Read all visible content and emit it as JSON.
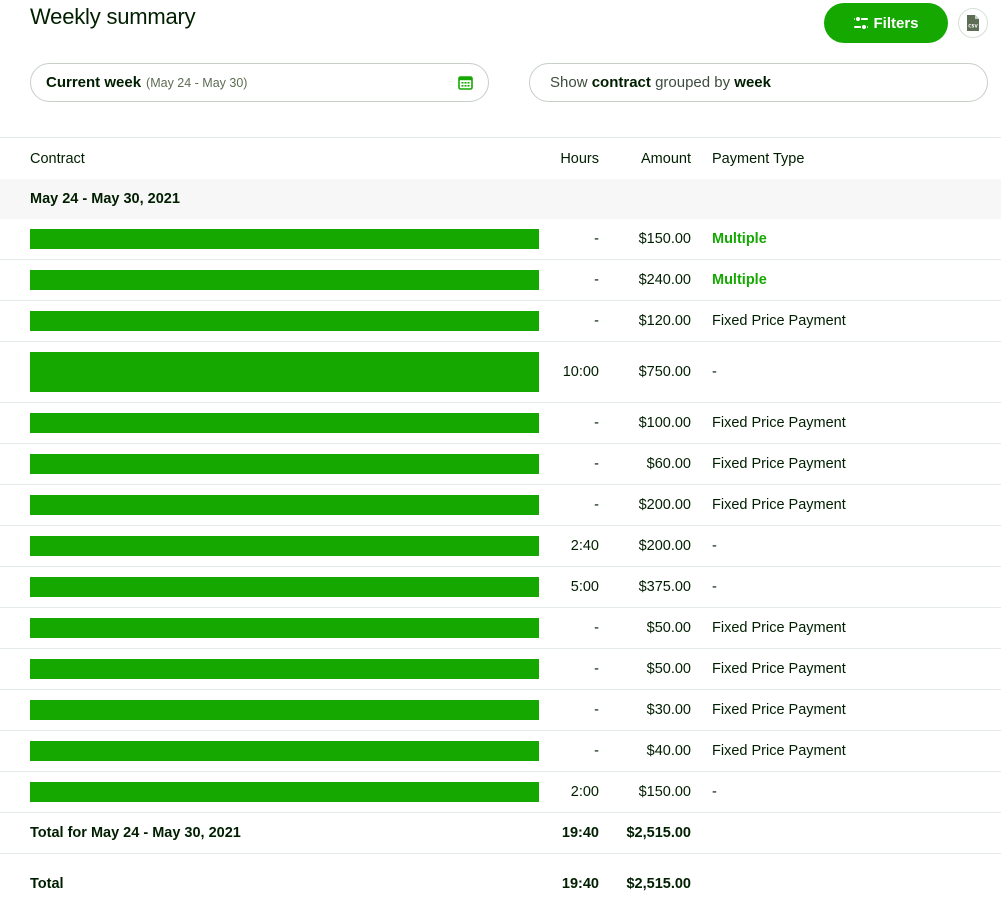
{
  "header": {
    "title": "Weekly summary",
    "filters_label": "Filters",
    "csv_icon_text": "CSV"
  },
  "week_selector": {
    "label": "Current week",
    "range": "(May 24 - May 30)"
  },
  "group_selector": {
    "prefix": "Show",
    "field": "contract",
    "middle": "grouped by",
    "group": "week"
  },
  "colors": {
    "accent": "#14a800",
    "redaction": "#14a800"
  },
  "table": {
    "columns": [
      "Contract",
      "Hours",
      "Amount",
      "Payment Type"
    ],
    "group_label": "May 24 - May 30, 2021",
    "rows": [
      {
        "hours": "-",
        "amount": "$150.00",
        "payment_type": "Multiple"
      },
      {
        "hours": "-",
        "amount": "$240.00",
        "payment_type": "Multiple"
      },
      {
        "hours": "-",
        "amount": "$120.00",
        "payment_type": "Fixed Price Payment"
      },
      {
        "hours": "10:00",
        "amount": "$750.00",
        "payment_type": "-"
      },
      {
        "hours": "-",
        "amount": "$100.00",
        "payment_type": "Fixed Price Payment"
      },
      {
        "hours": "-",
        "amount": "$60.00",
        "payment_type": "Fixed Price Payment"
      },
      {
        "hours": "-",
        "amount": "$200.00",
        "payment_type": "Fixed Price Payment"
      },
      {
        "hours": "2:40",
        "amount": "$200.00",
        "payment_type": "-"
      },
      {
        "hours": "5:00",
        "amount": "$375.00",
        "payment_type": "-"
      },
      {
        "hours": "-",
        "amount": "$50.00",
        "payment_type": "Fixed Price Payment"
      },
      {
        "hours": "-",
        "amount": "$50.00",
        "payment_type": "Fixed Price Payment"
      },
      {
        "hours": "-",
        "amount": "$30.00",
        "payment_type": "Fixed Price Payment"
      },
      {
        "hours": "-",
        "amount": "$40.00",
        "payment_type": "Fixed Price Payment"
      },
      {
        "hours": "2:00",
        "amount": "$150.00",
        "payment_type": "-"
      }
    ],
    "subtotal": {
      "label": "Total for May 24 - May 30, 2021",
      "hours": "19:40",
      "amount": "$2,515.00"
    },
    "total": {
      "label": "Total",
      "hours": "19:40",
      "amount": "$2,515.00"
    }
  }
}
